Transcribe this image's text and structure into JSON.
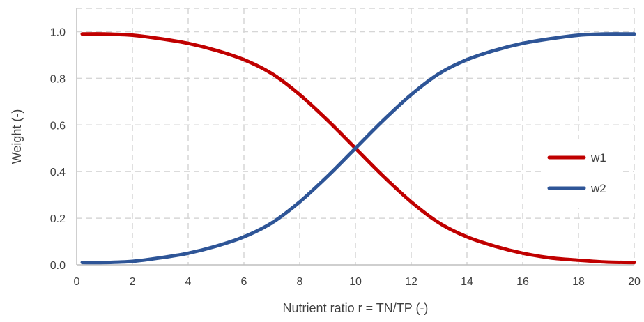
{
  "chart_data": {
    "type": "line",
    "title": "",
    "xlabel": "Nutrient ratio r = TN/TP (-)",
    "ylabel": "Weight (-)",
    "xlim": [
      0,
      20
    ],
    "ylim": [
      0,
      1.1
    ],
    "xticks": [
      0,
      2,
      4,
      6,
      8,
      10,
      12,
      14,
      16,
      18,
      20
    ],
    "yticks": [
      0.0,
      0.2,
      0.4,
      0.6,
      0.8,
      1.0
    ],
    "ytick_labels": [
      "0.0",
      "0.2",
      "0.4",
      "0.6",
      "0.8",
      "1.0"
    ],
    "grid": true,
    "legend_position": "right",
    "x": [
      0.2,
      1,
      2,
      3,
      4,
      5,
      6,
      7,
      8,
      9,
      10,
      11,
      12,
      13,
      14,
      15,
      16,
      17,
      18,
      19,
      20
    ],
    "series": [
      {
        "name": "w1",
        "color": "#c00000",
        "values": [
          0.99,
          0.99,
          0.985,
          0.97,
          0.95,
          0.92,
          0.88,
          0.82,
          0.73,
          0.62,
          0.5,
          0.38,
          0.27,
          0.18,
          0.12,
          0.08,
          0.05,
          0.03,
          0.02,
          0.012,
          0.01
        ]
      },
      {
        "name": "w2",
        "color": "#2e5597",
        "values": [
          0.01,
          0.01,
          0.015,
          0.03,
          0.05,
          0.08,
          0.12,
          0.18,
          0.27,
          0.38,
          0.5,
          0.62,
          0.73,
          0.82,
          0.88,
          0.92,
          0.95,
          0.97,
          0.985,
          0.99,
          0.99
        ]
      }
    ]
  }
}
